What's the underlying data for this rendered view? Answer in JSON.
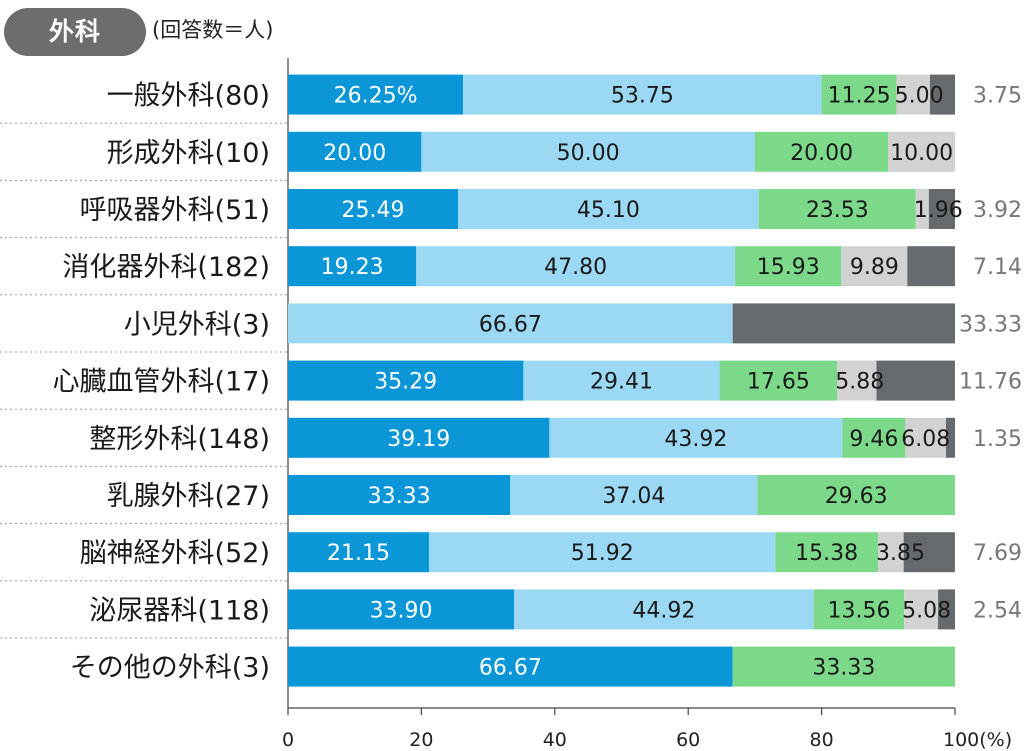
{
  "header": {
    "section_label": "外科",
    "unit_note": "(回答数＝人)"
  },
  "colors": {
    "c1": "#0a96d7",
    "c2": "#9bd8f3",
    "c3": "#7cd98a",
    "c4": "#d2d2d2",
    "c5": "#656a6e"
  },
  "chart_data": {
    "type": "bar",
    "orientation": "horizontal",
    "stacked": true,
    "categories": [
      "一般外科(80)",
      "形成外科(10)",
      "呼吸器外科(51)",
      "消化器外科(182)",
      "小児外科(3)",
      "心臓血管外科(17)",
      "整形外科(148)",
      "乳腺外科(27)",
      "脳神経外科(52)",
      "泌尿器科(118)",
      "その他の外科(3)"
    ],
    "series": [
      {
        "values": [
          26.25,
          20.0,
          25.49,
          19.23,
          0,
          35.29,
          39.19,
          33.33,
          21.15,
          33.9,
          66.67
        ],
        "labels": [
          "26.25%",
          "20.00",
          "25.49",
          "19.23",
          "",
          "35.29",
          "39.19",
          "33.33",
          "21.15",
          "33.90",
          "66.67"
        ]
      },
      {
        "values": [
          53.75,
          50.0,
          45.1,
          47.8,
          66.67,
          29.41,
          43.92,
          37.04,
          51.92,
          44.92,
          0
        ],
        "labels": [
          "53.75",
          "50.00",
          "45.10",
          "47.80",
          "66.67",
          "29.41",
          "43.92",
          "37.04",
          "51.92",
          "44.92",
          ""
        ]
      },
      {
        "values": [
          11.25,
          20.0,
          23.53,
          15.93,
          0,
          17.65,
          9.46,
          29.63,
          15.38,
          13.56,
          33.33
        ],
        "labels": [
          "11.25",
          "20.00",
          "23.53",
          "15.93",
          "",
          "17.65",
          "9.46",
          "29.63",
          "15.38",
          "13.56",
          "33.33"
        ]
      },
      {
        "values": [
          5.0,
          10.0,
          1.96,
          9.89,
          0,
          5.88,
          6.08,
          0,
          3.85,
          5.08,
          0
        ],
        "labels": [
          "5.00",
          "10.00",
          "1.96",
          "9.89",
          "",
          "5.88",
          "6.08",
          "",
          "3.85",
          "5.08",
          ""
        ]
      },
      {
        "values": [
          3.75,
          0,
          3.92,
          7.14,
          33.33,
          11.76,
          1.35,
          0,
          7.69,
          2.54,
          0
        ],
        "labels": [
          "3.75",
          "",
          "3.92",
          "7.14",
          "33.33",
          "11.76",
          "1.35",
          "",
          "7.69",
          "2.54",
          ""
        ]
      }
    ],
    "x_ticks": [
      "0",
      "20",
      "40",
      "60",
      "80",
      "100(%)"
    ],
    "xlim": [
      0,
      100
    ],
    "grid": false,
    "legend": "none"
  }
}
